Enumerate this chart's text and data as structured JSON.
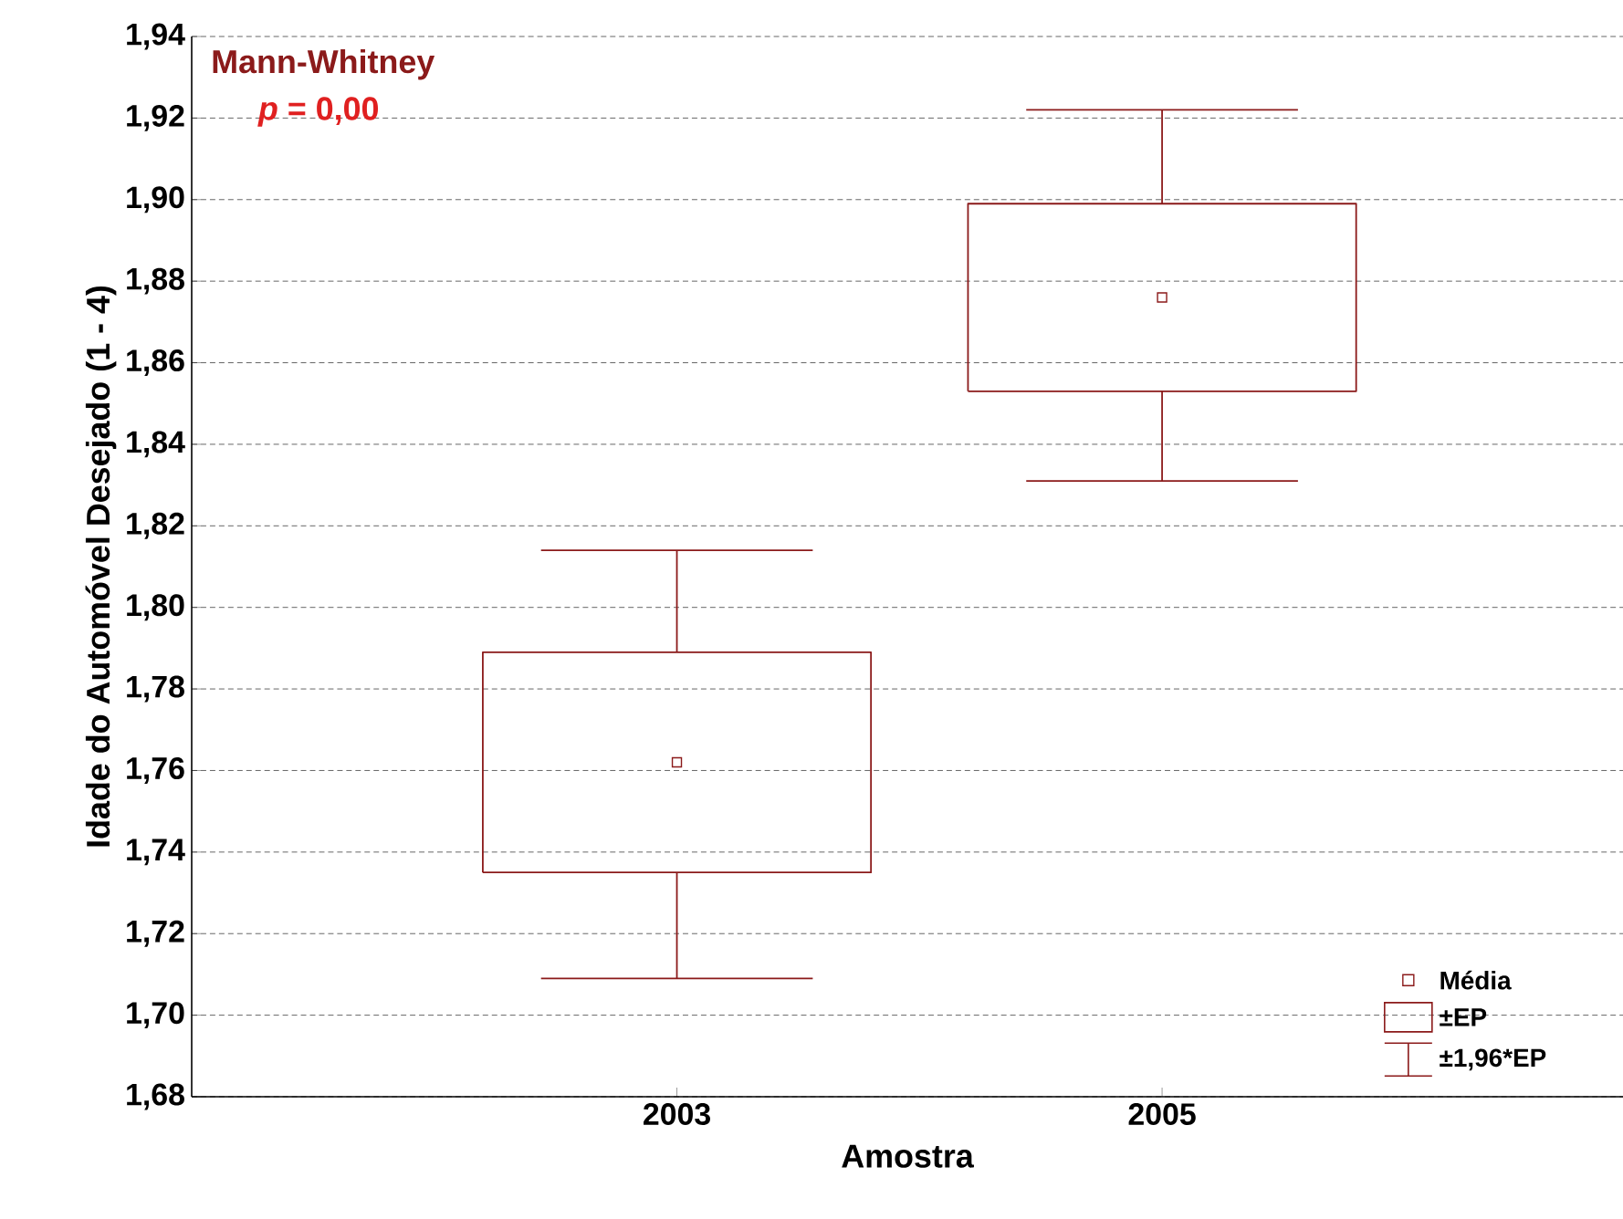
{
  "chart_data": {
    "type": "box",
    "xlabel": "Amostra",
    "ylabel": "Idade do Automóvel Desejado (1 - 4)",
    "categories": [
      "2003",
      "2005"
    ],
    "series": [
      {
        "color": "#8b1a1a",
        "boxes": [
          {
            "low": 1.709,
            "q1": 1.735,
            "median": 1.762,
            "q3": 1.789,
            "high": 1.814
          },
          {
            "low": 1.831,
            "q1": 1.853,
            "median": 1.876,
            "q3": 1.899,
            "high": 1.922
          }
        ]
      }
    ],
    "ylim": [
      1.68,
      1.94
    ],
    "yticks": [
      {
        "value": 1.68,
        "label": "1,68"
      },
      {
        "value": 1.7,
        "label": "1,70"
      },
      {
        "value": 1.72,
        "label": "1,72"
      },
      {
        "value": 1.74,
        "label": "1,74"
      },
      {
        "value": 1.76,
        "label": "1,76"
      },
      {
        "value": 1.78,
        "label": "1,78"
      },
      {
        "value": 1.8,
        "label": "1,80"
      },
      {
        "value": 1.82,
        "label": "1,82"
      },
      {
        "value": 1.84,
        "label": "1,84"
      },
      {
        "value": 1.86,
        "label": "1,86"
      },
      {
        "value": 1.88,
        "label": "1,88"
      },
      {
        "value": 1.9,
        "label": "1,90"
      },
      {
        "value": 1.92,
        "label": "1,92"
      },
      {
        "value": 1.94,
        "label": "1,94"
      }
    ],
    "grid": "y",
    "marker": "square",
    "annotations": [
      "Mann-Whitney",
      "*p* = 0,00",
      "Média",
      "±EP",
      "±1,96*EP"
    ]
  }
}
